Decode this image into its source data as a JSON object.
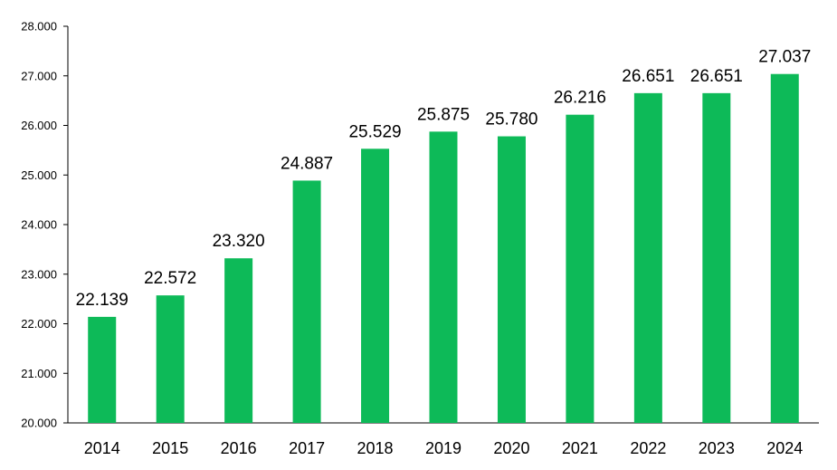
{
  "chart_data": {
    "type": "bar",
    "categories": [
      "2014",
      "2015",
      "2016",
      "2017",
      "2018",
      "2019",
      "2020",
      "2021",
      "2022",
      "2023",
      "2024"
    ],
    "values": [
      22139,
      22572,
      23320,
      24887,
      25529,
      25875,
      25780,
      26216,
      26651,
      26651,
      27037
    ],
    "data_labels": [
      "22.139",
      "22.572",
      "23.320",
      "24.887",
      "25.529",
      "25.875",
      "25.780",
      "26.216",
      "26.651",
      "26.651",
      "27.037"
    ],
    "ylim": [
      20000,
      28000
    ],
    "yticks": [
      20000,
      21000,
      22000,
      23000,
      24000,
      25000,
      26000,
      27000,
      28000
    ],
    "ytick_labels": [
      "20.000",
      "21.000",
      "22.000",
      "23.000",
      "24.000",
      "25.000",
      "26.000",
      "27.000",
      "28.000"
    ],
    "title": "",
    "xlabel": "",
    "ylabel": "",
    "grid": false,
    "legend": "none",
    "colors": {
      "bar": "#0DBA58",
      "axis": "#000000",
      "text": "#000000"
    }
  }
}
